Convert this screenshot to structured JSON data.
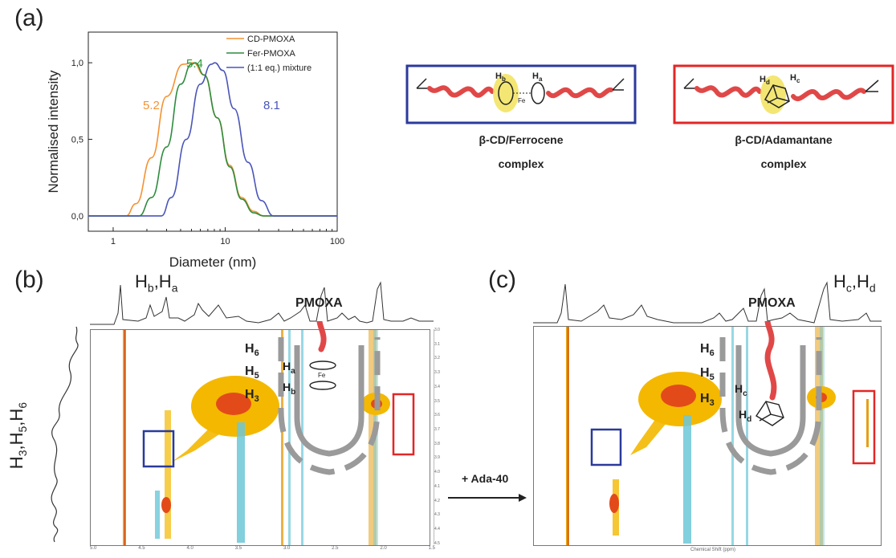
{
  "panel_a": {
    "letter": "(a)",
    "ylabel": "Normalised intensity",
    "xlabel": "Diameter (nm)",
    "yticks": [
      "0,0",
      "0,5",
      "1,0"
    ],
    "xticks": [
      "1",
      "10",
      "100"
    ],
    "legend": [
      {
        "name": "CD-PMOXA",
        "color": "#f39233"
      },
      {
        "name": "Fer-PMOXA",
        "color": "#2e8b3d"
      },
      {
        "name": "(1:1 eq.) mixture",
        "color": "#4a55b8"
      }
    ],
    "peak_labels": [
      {
        "text": "5.2",
        "color": "#f39233"
      },
      {
        "text": "5.4",
        "color": "#2e9a3d"
      },
      {
        "text": "8.1",
        "color": "#4a55b8"
      }
    ]
  },
  "chart_data": {
    "type": "line",
    "xlabel": "Diameter (nm)",
    "ylabel": "Normalised intensity",
    "x_scale": "log",
    "xlim": [
      0.6,
      100
    ],
    "ylim": [
      -0.1,
      1.2
    ],
    "series": [
      {
        "name": "CD-PMOXA",
        "peak": 5.2,
        "x": [
          0.6,
          1.3,
          1.6,
          2.2,
          3.0,
          4.2,
          5.2,
          6.5,
          8.5,
          11,
          14,
          18,
          22,
          100
        ],
        "y": [
          0,
          0,
          0.08,
          0.38,
          0.78,
          0.99,
          1.0,
          0.92,
          0.64,
          0.33,
          0.12,
          0.03,
          0,
          0
        ]
      },
      {
        "name": "Fer-PMOXA",
        "peak": 5.4,
        "x": [
          0.6,
          1.7,
          2.2,
          3.0,
          4.0,
          5.0,
          5.4,
          6.5,
          8.5,
          11,
          14,
          18,
          22,
          100
        ],
        "y": [
          0,
          0,
          0.12,
          0.45,
          0.86,
          0.99,
          1.0,
          0.92,
          0.64,
          0.32,
          0.11,
          0.02,
          0,
          0
        ]
      },
      {
        "name": "(1:1 eq.) mixture",
        "peak": 8.1,
        "x": [
          0.6,
          2.7,
          3.3,
          4.5,
          6.0,
          7.5,
          8.1,
          9.5,
          12,
          16,
          21,
          27,
          100
        ],
        "y": [
          0,
          0,
          0.12,
          0.5,
          0.86,
          0.99,
          1.0,
          0.95,
          0.7,
          0.35,
          0.1,
          0,
          0
        ]
      }
    ]
  },
  "complexes": {
    "ferrocene": {
      "title": "β-CD/Ferrocene",
      "subtitle": "complex",
      "label_b": "H",
      "sub_b": "b",
      "label_a": "H",
      "sub_a": "a",
      "fe": "Fe",
      "border": "#2b3a9c"
    },
    "adamantane": {
      "title": "β-CD/Adamantane",
      "subtitle": "complex",
      "label_d": "H",
      "sub_d": "d",
      "label_c": "H",
      "sub_c": "c",
      "border": "#e32626"
    }
  },
  "panel_b": {
    "letter": "(b)",
    "top_label": "H",
    "top_sub1": "b",
    "top_sep": ",H",
    "top_sub2": "a",
    "side_label": "H",
    "side_s1": "3",
    "side_m1": ",H",
    "side_s2": "5",
    "side_m2": ",H",
    "side_s3": "6",
    "pmoxa": "PMOXA",
    "h6": "H",
    "h6s": "6",
    "h5": "H",
    "h5s": "5",
    "h3": "H",
    "h3s": "3",
    "ha": "H",
    "has": "a",
    "hb": "H",
    "hbs": "b",
    "fe": "Fe",
    "axis_ticks": [
      "5.0",
      "4.5",
      "4.0",
      "3.5",
      "3.0",
      "2.5",
      "2.0",
      "1.5"
    ],
    "right_ticks": [
      "3.0",
      "3.1",
      "3.2",
      "3.3",
      "3.4",
      "3.5",
      "3.6",
      "3.7",
      "3.8",
      "3.9",
      "4.0",
      "4.1",
      "4.2",
      "4.3",
      "4.4",
      "4.5"
    ]
  },
  "arrow": {
    "label": "+ Ada-40"
  },
  "panel_c": {
    "letter": "(c)",
    "top_label": "H",
    "top_sub1": "c",
    "top_sep": ",H",
    "top_sub2": "d",
    "pmoxa": "PMOXA",
    "h6": "H",
    "h6s": "6",
    "h5": "H",
    "h5s": "5",
    "h3": "H",
    "h3s": "3",
    "hc": "H",
    "hcs": "c",
    "hd": "H",
    "hds": "d",
    "axis_title": "Chemical Shift (ppm)"
  }
}
